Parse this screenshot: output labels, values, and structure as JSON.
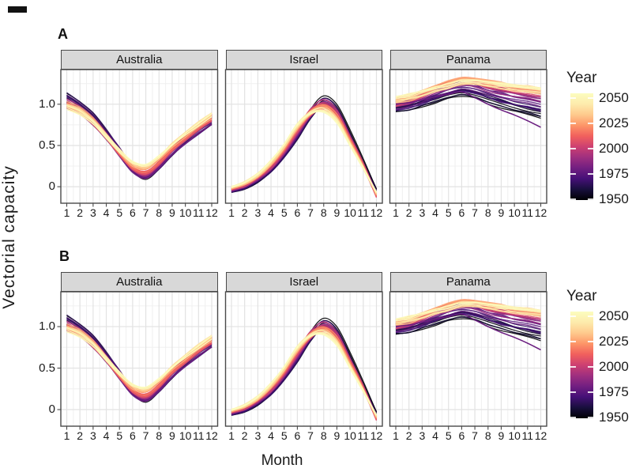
{
  "figure": {
    "tag_a": "A",
    "tag_b": "B",
    "xlabel": "Month",
    "ylabel": "Vectorial capacity",
    "facets": [
      "Australia",
      "Israel",
      "Panama"
    ],
    "x_tick_labels": [
      "1",
      "2",
      "3",
      "4",
      "5",
      "6",
      "7",
      "8",
      "9",
      "10",
      "11",
      "12"
    ],
    "y_tick_labels": [
      "1.0",
      "0.5",
      "0"
    ]
  },
  "legend": {
    "title": "Year",
    "tick_labels": [
      "2050",
      "2025",
      "2000",
      "1975",
      "1950"
    ],
    "colormap": "magma",
    "gradient_stops": [
      {
        "t": 0.0,
        "color": "#000004"
      },
      {
        "t": 0.1,
        "color": "#180f3d"
      },
      {
        "t": 0.2,
        "color": "#451077"
      },
      {
        "t": 0.3,
        "color": "#721f81"
      },
      {
        "t": 0.4,
        "color": "#9f2f7f"
      },
      {
        "t": 0.5,
        "color": "#cd4071"
      },
      {
        "t": 0.6,
        "color": "#f1605d"
      },
      {
        "t": 0.7,
        "color": "#fd9668"
      },
      {
        "t": 0.8,
        "color": "#feca8d"
      },
      {
        "t": 0.9,
        "color": "#fdebac"
      },
      {
        "t": 1.0,
        "color": "#fcfdbf"
      }
    ]
  },
  "colors": {
    "strip_fill": "#d8d8d8",
    "panel_border": "#4a4a4a",
    "grid_major": "#e2e2e2",
    "grid_minor": "#f0f0f0",
    "tick_mark": "#4a4a4a",
    "text": "#1b1b1b",
    "background": "#ffffff"
  },
  "chart_data": {
    "type": "line",
    "rows": [
      "A",
      "B"
    ],
    "note": "Rows A and B display the same seasonal curves. One line per year 1950-2050, coloured by year (magma colormap); values for intermediate years are interpolated between the anchor years below with small per-year spread.",
    "x": [
      1,
      2,
      3,
      4,
      5,
      6,
      7,
      8,
      9,
      10,
      11,
      12
    ],
    "xlabel": "Month",
    "ylabel": "Vectorial capacity",
    "ylim": [
      -0.2,
      1.42
    ],
    "y_ticks": [
      0,
      0.5,
      1.0
    ],
    "grid": "major and minor, light gray",
    "legend_position": "right",
    "color_by": "Year",
    "year_range": [
      1950,
      2050
    ],
    "panels": [
      {
        "facet": "Australia",
        "anchor_years": [
          1950,
          2000,
          2050
        ],
        "anchor_values": {
          "1950": [
            1.07,
            0.96,
            0.83,
            0.64,
            0.43,
            0.2,
            0.11,
            0.23,
            0.4,
            0.55,
            0.68,
            0.8
          ],
          "2000": [
            1.0,
            0.92,
            0.79,
            0.61,
            0.41,
            0.22,
            0.16,
            0.28,
            0.45,
            0.59,
            0.72,
            0.83
          ],
          "2050": [
            0.96,
            0.9,
            0.78,
            0.61,
            0.44,
            0.31,
            0.28,
            0.38,
            0.52,
            0.65,
            0.77,
            0.88
          ]
        }
      },
      {
        "facet": "Israel",
        "anchor_years": [
          1950,
          2000,
          2050
        ],
        "anchor_values": {
          "1950": [
            -0.05,
            -0.01,
            0.07,
            0.19,
            0.37,
            0.6,
            0.88,
            1.05,
            0.95,
            0.64,
            0.3,
            -0.04
          ],
          "2000": [
            -0.03,
            0.02,
            0.11,
            0.25,
            0.44,
            0.68,
            0.9,
            1.0,
            0.88,
            0.58,
            0.26,
            -0.12
          ],
          "2050": [
            0.0,
            0.06,
            0.16,
            0.32,
            0.52,
            0.76,
            0.89,
            0.9,
            0.78,
            0.5,
            0.22,
            -0.06
          ]
        }
      },
      {
        "facet": "Panama",
        "anchor_years": [
          1950,
          2000,
          2050
        ],
        "anchor_values": {
          "1950": [
            0.94,
            0.96,
            1.0,
            1.05,
            1.1,
            1.13,
            1.1,
            1.04,
            0.99,
            0.94,
            0.9,
            0.86
          ],
          "2000": [
            1.02,
            1.06,
            1.13,
            1.2,
            1.26,
            1.31,
            1.29,
            1.25,
            1.22,
            1.19,
            1.17,
            1.15
          ],
          "2050": [
            1.06,
            1.09,
            1.13,
            1.17,
            1.21,
            1.25,
            1.26,
            1.24,
            1.22,
            1.2,
            1.18,
            1.16
          ]
        },
        "outlier": {
          "year": 1978,
          "values": [
            1.0,
            1.02,
            1.05,
            1.09,
            1.12,
            1.15,
            1.08,
            1.0,
            0.93,
            0.87,
            0.8,
            0.72
          ]
        }
      }
    ]
  }
}
